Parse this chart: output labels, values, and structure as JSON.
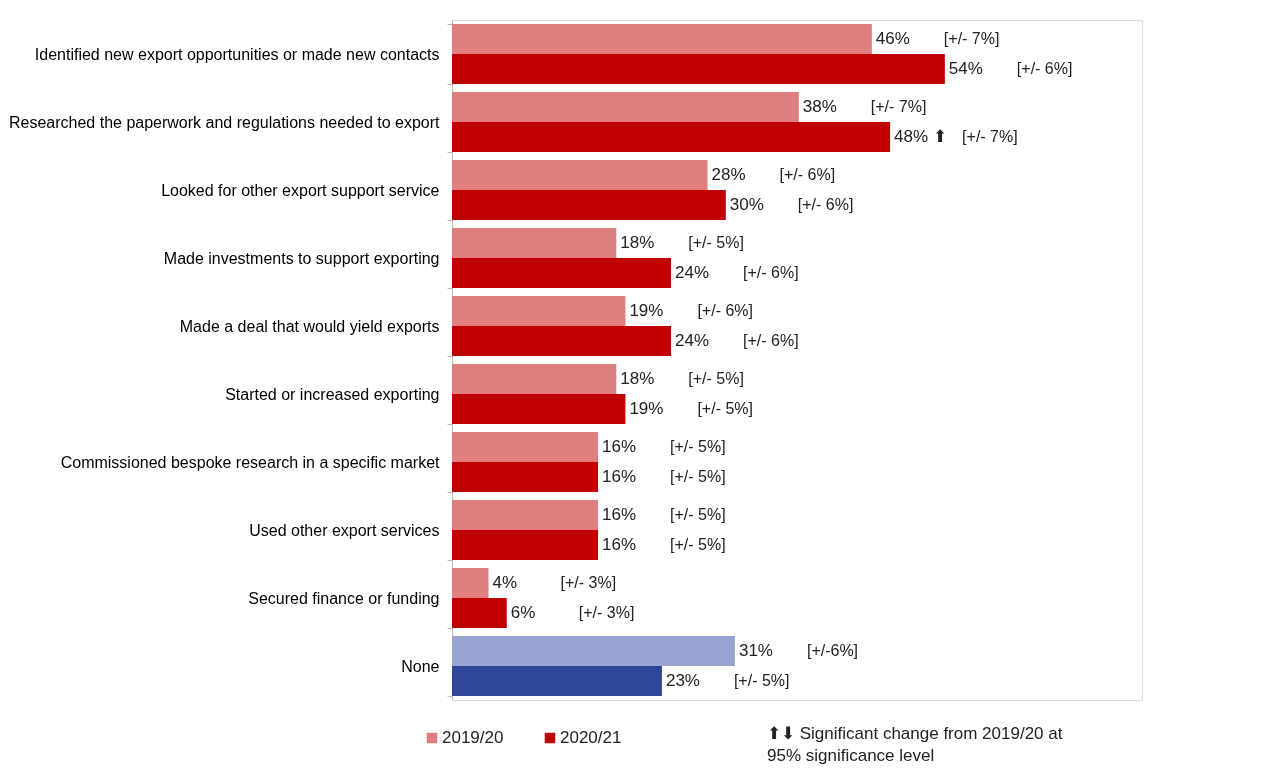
{
  "chart_data": {
    "type": "bar",
    "orientation": "horizontal",
    "categories": [
      "Identified new export opportunities or made new contacts",
      "Researched the paperwork and regulations needed to export",
      "Looked for other export support service",
      "Made investments to support exporting",
      "Made a deal that would yield exports",
      "Started or increased exporting",
      "Commissioned bespoke research in a specific market",
      "Used other export services",
      "Secured finance or funding",
      "None"
    ],
    "series": [
      {
        "name": "2019/20",
        "color": "#df7f7f",
        "colors": [
          "#df7f7f",
          "#df7f7f",
          "#df7f7f",
          "#df7f7f",
          "#df7f7f",
          "#df7f7f",
          "#df7f7f",
          "#df7f7f",
          "#df7f7f",
          "#97a5d0"
        ],
        "values": [
          46,
          38,
          28,
          18,
          19,
          18,
          16,
          16,
          4,
          31
        ],
        "value_labels": [
          "46%",
          "38%",
          "28%",
          "18%",
          "19%",
          "18%",
          "16%",
          "16%",
          "4%",
          "31%"
        ]
      },
      {
        "name": "2020/21",
        "color": "#c00000",
        "colors": [
          "#c00000",
          "#c00000",
          "#c00000",
          "#c00000",
          "#c00000",
          "#c00000",
          "#c00000",
          "#c00000",
          "#c00000",
          "#2e4598"
        ],
        "values": [
          54,
          48,
          30,
          24,
          24,
          19,
          16,
          16,
          6,
          23
        ],
        "value_labels": [
          "54%",
          "48% ⬆",
          "30%",
          "24%",
          "24%",
          "19%",
          "16%",
          "16%",
          "6%",
          "23%"
        ]
      }
    ],
    "legend": "bottom",
    "annotations": [
      "[+/- 7%]",
      "[+/- 6%]",
      "[+/- 7%]",
      "[+/- 7%]",
      "[+/- 6%]",
      "[+/- 6%]",
      "[+/- 5%]",
      "[+/- 6%]",
      "[+/- 6%]",
      "[+/- 6%]",
      "[+/- 5%]",
      "[+/- 5%]",
      "[+/- 5%]",
      "[+/- 5%]",
      "[+/- 5%]",
      "[+/- 5%]",
      "[+/- 3%]",
      "[+/- 3%]",
      "[+/-6%]",
      "[+/- 5%]",
      "⬆⬇ Significant change from 2019/20 at\n95% significance level"
    ]
  }
}
